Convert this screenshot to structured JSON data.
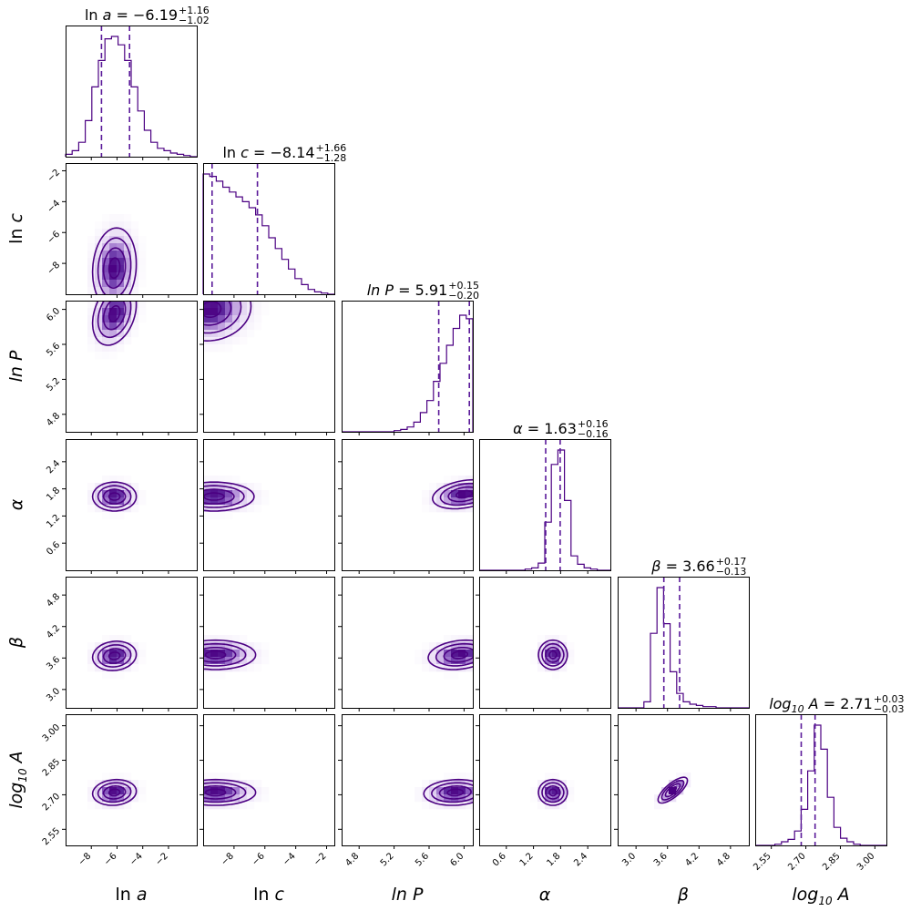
{
  "colors": {
    "primary": "#4b0082",
    "histogram": "#4b0082",
    "quantile_line": "#5a1a9a",
    "density_scale": [
      "#ffffff",
      "#f0e8f8",
      "#dccbee",
      "#b998db",
      "#8a5cc0",
      "#5e2a9e",
      "#4b0082"
    ]
  },
  "chart_data": {
    "type": "corner",
    "parameters": [
      {
        "id": "ln_a",
        "label": "ln a",
        "italic_label": "a",
        "label_prefix": "ln ",
        "range": [
          -10,
          0.2
        ],
        "ticks": [
          -8,
          -6,
          -4,
          -2
        ],
        "tick_labels": [
          "−8",
          "−6",
          "−4",
          "−2"
        ],
        "median": -6.19,
        "plus": 1.16,
        "minus": 1.02,
        "title_value": "= −6.19",
        "title_plus": "+1.16",
        "title_minus": "−1.02",
        "hist": [
          0.02,
          0.05,
          0.12,
          0.3,
          0.58,
          0.8,
          0.98,
          1.0,
          0.93,
          0.8,
          0.58,
          0.38,
          0.22,
          0.12,
          0.07,
          0.05,
          0.03,
          0.02,
          0.01,
          0.0
        ],
        "sigma": 0.85
      },
      {
        "id": "ln_c",
        "label": "ln c",
        "italic_label": "c",
        "label_prefix": "ln ",
        "range": [
          -10,
          -1.5
        ],
        "ticks": [
          -8,
          -6,
          -4,
          -2
        ],
        "tick_labels": [
          "−8",
          "−6",
          "−4",
          "−2"
        ],
        "median": -8.14,
        "plus": 1.66,
        "minus": 1.28,
        "title_value": "= −8.14",
        "title_plus": "+1.66",
        "title_minus": "−1.28",
        "hist": [
          1.0,
          0.98,
          0.94,
          0.89,
          0.85,
          0.81,
          0.77,
          0.72,
          0.66,
          0.57,
          0.47,
          0.38,
          0.29,
          0.21,
          0.13,
          0.08,
          0.04,
          0.02,
          0.01,
          0.0
        ],
        "sigma": 1.3
      },
      {
        "id": "ln_P",
        "label": "ln P",
        "italic_label": "ln P",
        "label_prefix": "",
        "range": [
          4.6,
          6.1
        ],
        "ticks": [
          4.8,
          5.2,
          5.6,
          6.0
        ],
        "tick_labels": [
          "4.8",
          "5.2",
          "5.6",
          "6.0"
        ],
        "median": 5.91,
        "plus": 0.15,
        "minus": 0.2,
        "title_value": "= 5.91",
        "title_plus": "+0.15",
        "title_minus": "−0.20",
        "hist": [
          0.0,
          0.0,
          0.0,
          0.0,
          0.0,
          0.0,
          0.0,
          0.0,
          0.01,
          0.02,
          0.04,
          0.08,
          0.16,
          0.26,
          0.42,
          0.57,
          0.72,
          0.86,
          0.97,
          0.94
        ],
        "sigma": 0.18
      },
      {
        "id": "alpha",
        "label": "α",
        "italic_label": "α",
        "label_prefix": "",
        "range": [
          0.0,
          2.9
        ],
        "ticks": [
          0.6,
          1.2,
          1.8,
          2.4
        ],
        "tick_labels": [
          "0.6",
          "1.2",
          "1.8",
          "2.4"
        ],
        "median": 1.63,
        "plus": 0.16,
        "minus": 0.16,
        "title_value": "= 1.63",
        "title_plus": "+0.16",
        "title_minus": "−0.16",
        "hist": [
          0.0,
          0.0,
          0.0,
          0.0,
          0.0,
          0.0,
          0.0,
          0.01,
          0.02,
          0.06,
          0.4,
          0.88,
          1.0,
          0.58,
          0.12,
          0.05,
          0.02,
          0.01,
          0.0,
          0.0
        ],
        "sigma": 0.16
      },
      {
        "id": "beta",
        "label": "β",
        "italic_label": "β",
        "label_prefix": "",
        "range": [
          2.65,
          5.15
        ],
        "ticks": [
          3.0,
          3.6,
          4.2,
          4.8
        ],
        "tick_labels": [
          "3.0",
          "3.6",
          "4.2",
          "4.8"
        ],
        "median": 3.66,
        "plus": 0.17,
        "minus": 0.13,
        "title_value": "= 3.66",
        "title_plus": "+0.17",
        "title_minus": "−0.13",
        "hist": [
          0.0,
          0.0,
          0.0,
          0.0,
          0.05,
          0.62,
          1.0,
          0.7,
          0.3,
          0.12,
          0.05,
          0.03,
          0.02,
          0.01,
          0.01,
          0.0,
          0.0,
          0.0,
          0.0,
          0.0
        ],
        "sigma": 0.14
      },
      {
        "id": "log10_A",
        "label": "log10 A",
        "italic_label": "log",
        "label_prefix": "",
        "range": [
          2.48,
          3.05
        ],
        "ticks": [
          2.55,
          2.7,
          2.85,
          3.0
        ],
        "tick_labels": [
          "2.55",
          "2.70",
          "2.85",
          "3.00"
        ],
        "median": 2.71,
        "plus": 0.03,
        "minus": 0.03,
        "title_value": "= 2.71",
        "title_plus": "+0.03",
        "title_minus": "−0.03",
        "hist": [
          0.0,
          0.0,
          0.0,
          0.01,
          0.03,
          0.05,
          0.12,
          0.3,
          0.62,
          1.0,
          0.8,
          0.4,
          0.15,
          0.06,
          0.03,
          0.01,
          0.0,
          0.0,
          0.0,
          0.0
        ],
        "sigma": 0.028
      }
    ],
    "correlations": [
      {
        "x": "ln_a",
        "y": "ln_c",
        "center": [
          -6.2,
          -8.3
        ],
        "rho": 0.1
      },
      {
        "x": "ln_a",
        "y": "ln_P",
        "center": [
          -6.2,
          5.95
        ],
        "rho": 0.3
      },
      {
        "x": "ln_c",
        "y": "ln_P",
        "center": [
          -9.5,
          6.0
        ],
        "rho": 0.1
      },
      {
        "x": "ln_a",
        "y": "alpha",
        "center": [
          -6.2,
          1.63
        ],
        "rho": 0.0
      },
      {
        "x": "ln_c",
        "y": "alpha",
        "center": [
          -9.3,
          1.63
        ],
        "rho": 0.0
      },
      {
        "x": "ln_P",
        "y": "alpha",
        "center": [
          6.0,
          1.68
        ],
        "rho": 0.3
      },
      {
        "x": "ln_a",
        "y": "beta",
        "center": [
          -6.2,
          3.64
        ],
        "rho": 0.1
      },
      {
        "x": "ln_c",
        "y": "beta",
        "center": [
          -9.2,
          3.66
        ],
        "rho": 0.0
      },
      {
        "x": "ln_P",
        "y": "beta",
        "center": [
          5.95,
          3.66
        ],
        "rho": 0.2
      },
      {
        "x": "alpha",
        "y": "beta",
        "center": [
          1.63,
          3.66
        ],
        "rho": 0.0
      },
      {
        "x": "ln_a",
        "y": "log10_A",
        "center": [
          -6.2,
          2.71
        ],
        "rho": 0.1
      },
      {
        "x": "ln_c",
        "y": "log10_A",
        "center": [
          -9.2,
          2.71
        ],
        "rho": 0.0
      },
      {
        "x": "ln_P",
        "y": "log10_A",
        "center": [
          5.9,
          2.71
        ],
        "rho": 0.1
      },
      {
        "x": "alpha",
        "y": "log10_A",
        "center": [
          1.63,
          2.71
        ],
        "rho": 0.0
      },
      {
        "x": "beta",
        "y": "log10_A",
        "center": [
          3.7,
          2.72
        ],
        "rho": 0.75
      }
    ],
    "grid": false,
    "legend": "none"
  }
}
